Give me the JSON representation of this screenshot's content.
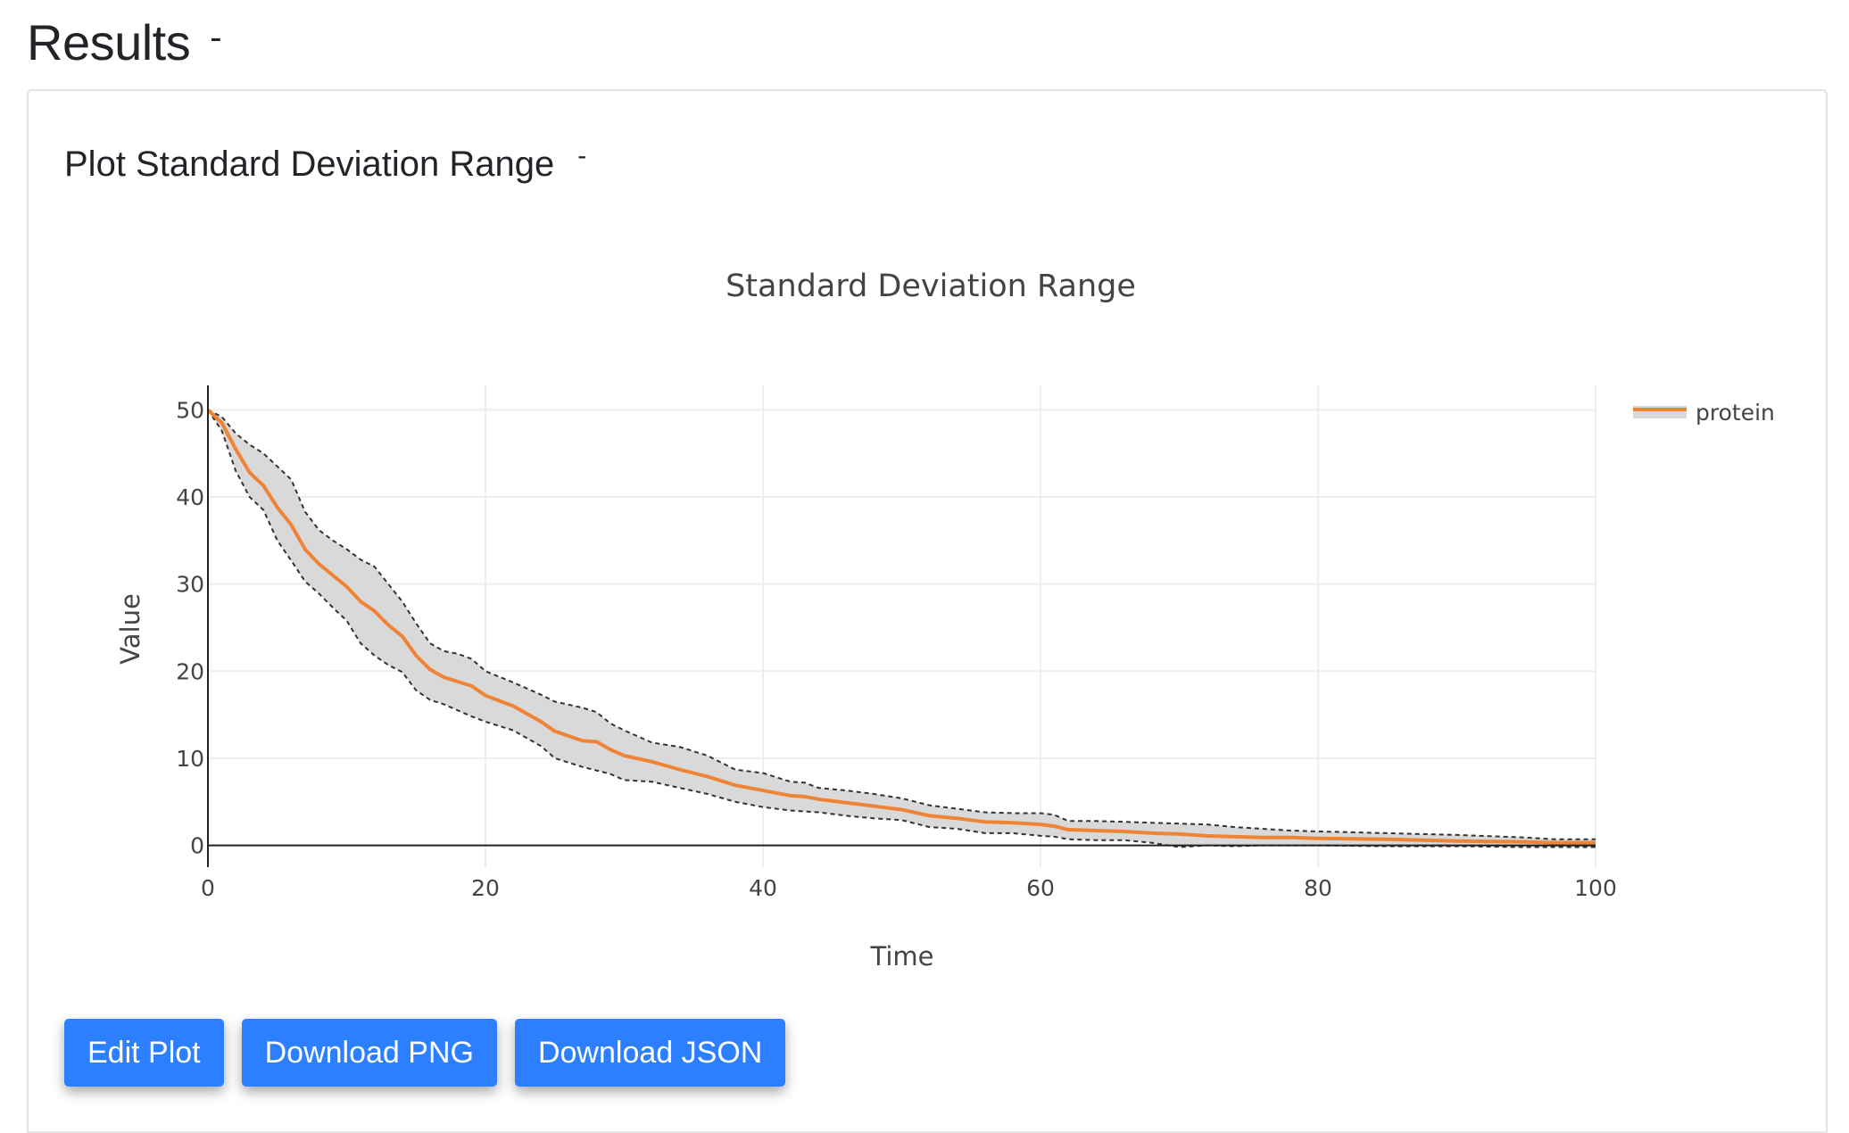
{
  "page": {
    "results_title": "Results",
    "results_toggle": "-",
    "card_title": "Plot Standard Deviation Range",
    "card_toggle": "-"
  },
  "buttons": {
    "edit": "Edit Plot",
    "png": "Download PNG",
    "json": "Download JSON"
  },
  "colors": {
    "accent": "#2c7fff",
    "line": "#ef8336",
    "band": "#d9d9d9",
    "band_edge": "#333333",
    "grid": "#eeeeee"
  },
  "chart_data": {
    "type": "line",
    "title": "Standard Deviation Range",
    "xlabel": "Time",
    "ylabel": "Value",
    "xlim": [
      0,
      100
    ],
    "ylim": [
      -2.5,
      52.8
    ],
    "xticks": [
      0,
      20,
      40,
      60,
      80,
      100
    ],
    "yticks": [
      0,
      10,
      20,
      30,
      40,
      50
    ],
    "grid": true,
    "legend_position": "top-right",
    "series": [
      {
        "name": "protein",
        "x": [
          0,
          1,
          2,
          3,
          4,
          5,
          6,
          7,
          8,
          9,
          10,
          11,
          12,
          13,
          14,
          15,
          16,
          17,
          18,
          19,
          20,
          22,
          24,
          25,
          27,
          28,
          29,
          30,
          32,
          34,
          36,
          38,
          40,
          42,
          43,
          44,
          46,
          48,
          50,
          52,
          54,
          56,
          58,
          60,
          61,
          62,
          64,
          66,
          68,
          70,
          72,
          74,
          76,
          78,
          80,
          85,
          90,
          95,
          97,
          100
        ],
        "mean": [
          50,
          48.5,
          45.5,
          42.8,
          41.3,
          38.8,
          36.8,
          34,
          32.3,
          31,
          29.7,
          28,
          26.9,
          25.3,
          24,
          21.8,
          20.2,
          19.3,
          18.8,
          18.3,
          17.2,
          16,
          14.2,
          13.1,
          12,
          11.9,
          11,
          10.3,
          9.6,
          8.7,
          7.9,
          6.9,
          6.3,
          5.7,
          5.6,
          5.3,
          4.9,
          4.5,
          4.1,
          3.4,
          3.1,
          2.7,
          2.6,
          2.4,
          2.2,
          1.8,
          1.7,
          1.6,
          1.4,
          1.3,
          1.1,
          1,
          0.9,
          0.9,
          0.8,
          0.7,
          0.5,
          0.4,
          0.3,
          0.3
        ],
        "upper": [
          50,
          49.2,
          47.3,
          46,
          45,
          43.5,
          42,
          38.3,
          36.2,
          35,
          34,
          32.8,
          32,
          30,
          28,
          25.5,
          23.2,
          22.3,
          22,
          21.4,
          20,
          18.7,
          17.3,
          16.5,
          15.8,
          15.3,
          14,
          13.2,
          11.8,
          11.3,
          10.3,
          8.7,
          8.3,
          7.3,
          7.2,
          6.6,
          6.3,
          5.9,
          5.4,
          4.6,
          4.2,
          3.8,
          3.7,
          3.7,
          3.5,
          2.8,
          2.8,
          2.7,
          2.6,
          2.5,
          2.4,
          2.1,
          1.9,
          1.7,
          1.6,
          1.4,
          1.2,
          0.9,
          0.7,
          0.7
        ],
        "lower": [
          50,
          47.6,
          43,
          40,
          38.5,
          35,
          32.7,
          30.3,
          28.9,
          27.3,
          25.8,
          23.2,
          21.8,
          20.7,
          19.9,
          17.8,
          16.7,
          16.2,
          15.5,
          14.8,
          14.2,
          13.2,
          11.4,
          10,
          9,
          8.6,
          8.2,
          7.5,
          7.3,
          6.6,
          5.9,
          5,
          4.4,
          4,
          3.9,
          3.8,
          3.4,
          3.1,
          2.9,
          2.1,
          1.9,
          1.4,
          1.4,
          1.1,
          1,
          0.7,
          0.6,
          0.6,
          0.3,
          -0.2,
          0,
          -0.1,
          0,
          0,
          0,
          -0.1,
          -0.1,
          -0.2,
          -0.2,
          -0.2
        ]
      }
    ]
  }
}
